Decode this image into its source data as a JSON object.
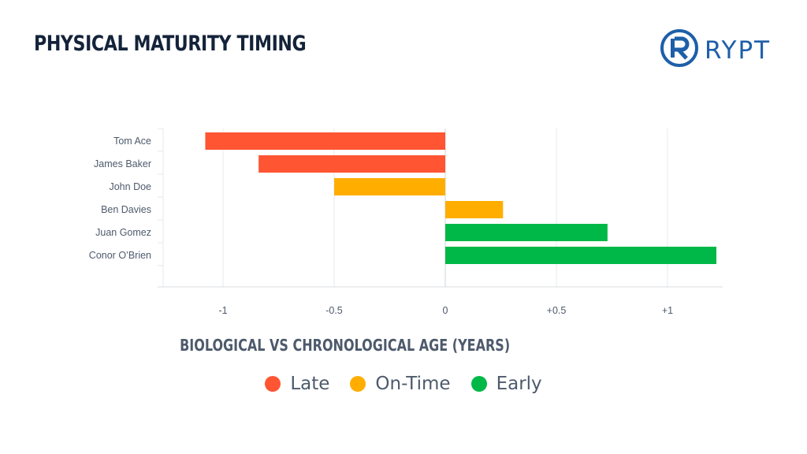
{
  "header": {
    "title": "PHYSICAL MATURITY TIMING",
    "logo_text": "RYPT",
    "logo_icon": "rypt-r-circle-logo"
  },
  "colors": {
    "late": "#ff5533",
    "on_time": "#ffae00",
    "early": "#00b847",
    "text_dark": "#14233a",
    "text_muted": "#4d5a6c",
    "brand_blue": "#1e5fa8"
  },
  "chart_data": {
    "type": "bar",
    "orientation": "horizontal",
    "categories": [
      "Tom Ace",
      "James Baker",
      "John Doe",
      "Ben Davies",
      "Juan Gomez",
      "Conor O’Brien"
    ],
    "values": [
      -1.08,
      -0.84,
      -0.5,
      0.26,
      0.73,
      1.22
    ],
    "status": [
      "late",
      "late",
      "on_time",
      "on_time",
      "early",
      "early"
    ],
    "xlabel": "BIOLOGICAL VS CHRONOLOGICAL AGE (YEARS)",
    "xlim": [
      -1.25,
      1.25
    ],
    "xticks": [
      -1,
      -0.5,
      0,
      0.5,
      1
    ],
    "xtick_labels": [
      "-1",
      "-0.5",
      "0",
      "+0.5",
      "+1"
    ],
    "grid": "vertical",
    "legend_position": "bottom",
    "legend": [
      {
        "key": "late",
        "label": "Late"
      },
      {
        "key": "on_time",
        "label": "On-Time"
      },
      {
        "key": "early",
        "label": "Early"
      }
    ]
  }
}
